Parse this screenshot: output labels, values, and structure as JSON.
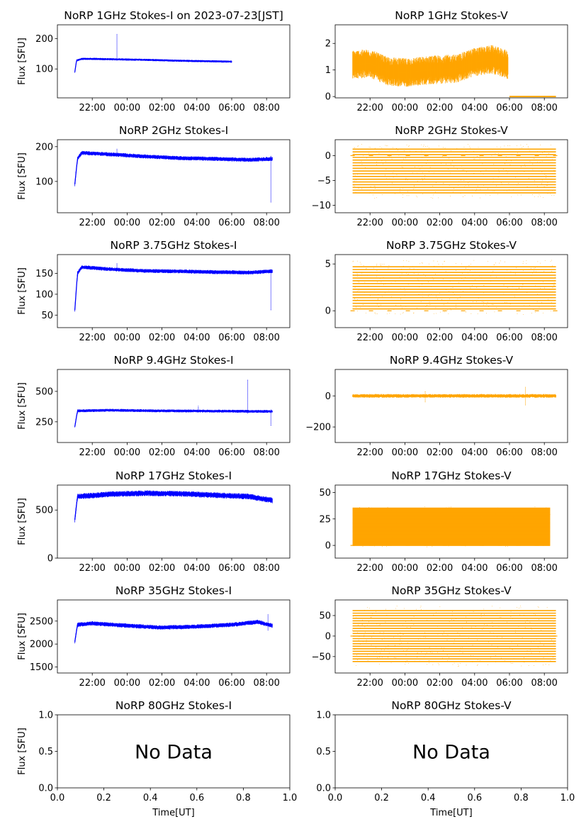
{
  "x_tick_labels": [
    "22:00",
    "00:00",
    "02:00",
    "04:00",
    "06:00",
    "08:00"
  ],
  "ylabel": "Flux [SFU]",
  "xlabel": "Time[UT]",
  "no_data_text": "No Data",
  "colors": {
    "stokes_i": "#0000ff",
    "stokes_v": "#ffa500"
  },
  "chart_data": [
    {
      "type": "scatter",
      "title": "NoRP 1GHz Stokes-I on 2023-07-23[JST]",
      "ylabel": "Flux [SFU]",
      "x_range": [
        "2023-07-22 20:00",
        "2023-07-23 09:20"
      ],
      "x_ticks": [
        "2023-07-22 22:00",
        "2023-07-23 00:00",
        "2023-07-23 02:00",
        "2023-07-23 04:00",
        "2023-07-23 06:00",
        "2023-07-23 08:00"
      ],
      "ylim": [
        5,
        245
      ],
      "yticks": [
        100,
        200
      ],
      "series": [
        {
          "color": "#0000ff",
          "start": "2023-07-22 21:00",
          "end": "2023-07-23 06:00",
          "profile": [
            [
              0,
              90
            ],
            [
              0.1,
              128
            ],
            [
              0.4,
              133
            ],
            [
              1,
              133
            ],
            [
              3,
              131
            ],
            [
              4,
              130
            ],
            [
              6,
              127
            ],
            [
              8,
              125
            ],
            [
              9,
              124
            ]
          ],
          "noise": 3,
          "spikes": [
            {
              "time": "2023-07-22 23:25",
              "min": 128,
              "max": 215
            }
          ]
        }
      ]
    },
    {
      "type": "scatter",
      "title": "NoRP 1GHz Stokes-V",
      "x_range": [
        "2023-07-22 20:00",
        "2023-07-23 09:20"
      ],
      "x_ticks": [
        "2023-07-22 22:00",
        "2023-07-23 00:00",
        "2023-07-23 02:00",
        "2023-07-23 04:00",
        "2023-07-23 06:00",
        "2023-07-23 08:00"
      ],
      "ylim": [
        -0.05,
        2.7
      ],
      "yticks": [
        0,
        1,
        2
      ],
      "series": [
        {
          "color": "#ffa500",
          "start": "2023-07-22 21:00",
          "end": "2023-07-23 05:55",
          "profile": [
            [
              0,
              1.2
            ],
            [
              1,
              1.25
            ],
            [
              2,
              0.95
            ],
            [
              3,
              0.9
            ],
            [
              4.5,
              1.0
            ],
            [
              6,
              1.05
            ],
            [
              7,
              1.3
            ],
            [
              8,
              1.4
            ],
            [
              8.9,
              1.2
            ]
          ],
          "noise": 0.45,
          "zero_segment": {
            "start": "2023-07-23 06:00",
            "end": "2023-07-23 08:40"
          }
        }
      ]
    },
    {
      "type": "scatter",
      "title": "NoRP 2GHz Stokes-I",
      "ylabel": "Flux [SFU]",
      "x_range": [
        "2023-07-22 20:00",
        "2023-07-23 09:20"
      ],
      "x_ticks": [
        "2023-07-22 22:00",
        "2023-07-23 00:00",
        "2023-07-23 02:00",
        "2023-07-23 04:00",
        "2023-07-23 06:00",
        "2023-07-23 08:00"
      ],
      "ylim": [
        10,
        220
      ],
      "yticks": [
        100,
        200
      ],
      "series": [
        {
          "color": "#0000ff",
          "start": "2023-07-22 21:00",
          "end": "2023-07-23 08:20",
          "profile": [
            [
              0,
              92
            ],
            [
              0.15,
              165
            ],
            [
              0.4,
              182
            ],
            [
              2,
              178
            ],
            [
              4,
              172
            ],
            [
              6,
              167
            ],
            [
              8,
              165
            ],
            [
              10,
              162
            ],
            [
              11.33,
              165
            ]
          ],
          "noise": 5,
          "spikes": [
            {
              "time": "2023-07-22 23:25",
              "min": 175,
              "max": 195
            },
            {
              "time": "2023-07-23 08:15",
              "min": 40,
              "max": 175
            }
          ]
        }
      ]
    },
    {
      "type": "scatter",
      "title": "NoRP 2GHz Stokes-V",
      "x_range": [
        "2023-07-22 20:00",
        "2023-07-23 09:20"
      ],
      "x_ticks": [
        "2023-07-22 22:00",
        "2023-07-23 00:00",
        "2023-07-23 02:00",
        "2023-07-23 04:00",
        "2023-07-23 06:00",
        "2023-07-23 08:00"
      ],
      "ylim": [
        -11.5,
        3.2
      ],
      "yticks": [
        0,
        -5,
        -10
      ],
      "series": [
        {
          "color": "#ffa500",
          "start": "2023-07-22 21:00",
          "end": "2023-07-23 08:40",
          "bands": {
            "from": -7.5,
            "to": 1.2,
            "step": 0.55
          }
        }
      ]
    },
    {
      "type": "scatter",
      "title": "NoRP 3.75GHz Stokes-I",
      "ylabel": "Flux [SFU]",
      "x_range": [
        "2023-07-22 20:00",
        "2023-07-23 09:20"
      ],
      "x_ticks": [
        "2023-07-22 22:00",
        "2023-07-23 00:00",
        "2023-07-23 02:00",
        "2023-07-23 04:00",
        "2023-07-23 06:00",
        "2023-07-23 08:00"
      ],
      "ylim": [
        20,
        195
      ],
      "yticks": [
        50,
        100,
        150
      ],
      "series": [
        {
          "color": "#0000ff",
          "start": "2023-07-22 21:00",
          "end": "2023-07-23 08:20",
          "profile": [
            [
              0,
              62
            ],
            [
              0.15,
              150
            ],
            [
              0.4,
              165
            ],
            [
              2,
              160
            ],
            [
              4,
              156
            ],
            [
              6,
              155
            ],
            [
              8,
              153
            ],
            [
              10,
              152
            ],
            [
              11.33,
              155
            ]
          ],
          "noise": 4,
          "spikes": [
            {
              "time": "2023-07-22 23:25",
              "min": 155,
              "max": 175
            },
            {
              "time": "2023-07-23 08:15",
              "min": 62,
              "max": 160
            }
          ]
        }
      ]
    },
    {
      "type": "scatter",
      "title": "NoRP 3.75GHz Stokes-V",
      "x_range": [
        "2023-07-22 20:00",
        "2023-07-23 09:20"
      ],
      "x_ticks": [
        "2023-07-22 22:00",
        "2023-07-23 00:00",
        "2023-07-23 02:00",
        "2023-07-23 04:00",
        "2023-07-23 06:00",
        "2023-07-23 08:00"
      ],
      "ylim": [
        -1.8,
        6.0
      ],
      "yticks": [
        0,
        5
      ],
      "series": [
        {
          "color": "#ffa500",
          "start": "2023-07-22 21:00",
          "end": "2023-07-23 08:40",
          "bands": {
            "from": 0.2,
            "to": 4.8,
            "step": 0.3
          }
        }
      ]
    },
    {
      "type": "scatter",
      "title": "NoRP 9.4GHz Stokes-I",
      "ylabel": "Flux [SFU]",
      "x_range": [
        "2023-07-22 20:00",
        "2023-07-23 09:20"
      ],
      "x_ticks": [
        "2023-07-22 22:00",
        "2023-07-23 00:00",
        "2023-07-23 02:00",
        "2023-07-23 04:00",
        "2023-07-23 06:00",
        "2023-07-23 08:00"
      ],
      "ylim": [
        80,
        680
      ],
      "yticks": [
        250,
        500
      ],
      "series": [
        {
          "color": "#0000ff",
          "start": "2023-07-22 21:00",
          "end": "2023-07-23 08:20",
          "profile": [
            [
              0,
              210
            ],
            [
              0.15,
              340
            ],
            [
              2,
              345
            ],
            [
              5,
              340
            ],
            [
              8,
              338
            ],
            [
              11.33,
              335
            ]
          ],
          "noise": 10,
          "spikes": [
            {
              "time": "2023-07-23 06:55",
              "min": 320,
              "max": 600
            },
            {
              "time": "2023-07-23 04:05",
              "min": 330,
              "max": 380
            },
            {
              "time": "2023-07-23 08:15",
              "min": 220,
              "max": 350
            }
          ]
        }
      ]
    },
    {
      "type": "scatter",
      "title": "NoRP 9.4GHz Stokes-V",
      "x_range": [
        "2023-07-22 20:00",
        "2023-07-23 09:20"
      ],
      "x_ticks": [
        "2023-07-22 22:00",
        "2023-07-23 00:00",
        "2023-07-23 02:00",
        "2023-07-23 04:00",
        "2023-07-23 06:00",
        "2023-07-23 08:00"
      ],
      "ylim": [
        -300,
        170
      ],
      "yticks": [
        0,
        -200
      ],
      "series": [
        {
          "color": "#ffa500",
          "start": "2023-07-22 21:00",
          "end": "2023-07-23 08:40",
          "profile": [
            [
              0,
              0
            ],
            [
              11.67,
              0
            ]
          ],
          "noise": 10,
          "spikes": [
            {
              "time": "2023-07-23 06:55",
              "min": -60,
              "max": 60
            },
            {
              "time": "2023-07-23 01:10",
              "min": -40,
              "max": 30
            }
          ]
        }
      ]
    },
    {
      "type": "scatter",
      "title": "NoRP 17GHz Stokes-I",
      "ylabel": "Flux [SFU]",
      "x_range": [
        "2023-07-22 20:00",
        "2023-07-23 09:20"
      ],
      "x_ticks": [
        "2023-07-22 22:00",
        "2023-07-23 00:00",
        "2023-07-23 02:00",
        "2023-07-23 04:00",
        "2023-07-23 06:00",
        "2023-07-23 08:00"
      ],
      "ylim": [
        0,
        760
      ],
      "yticks": [
        0,
        500
      ],
      "series": [
        {
          "color": "#0000ff",
          "start": "2023-07-22 21:00",
          "end": "2023-07-23 08:20",
          "profile": [
            [
              0,
              400
            ],
            [
              0.15,
              640
            ],
            [
              2,
              665
            ],
            [
              4,
              675
            ],
            [
              6,
              670
            ],
            [
              8,
              655
            ],
            [
              10,
              640
            ],
            [
              11.33,
              600
            ]
          ],
          "noise": 25
        }
      ]
    },
    {
      "type": "scatter",
      "title": "NoRP 17GHz Stokes-V",
      "x_range": [
        "2023-07-22 20:00",
        "2023-07-23 09:20"
      ],
      "x_ticks": [
        "2023-07-22 22:00",
        "2023-07-23 00:00",
        "2023-07-23 02:00",
        "2023-07-23 04:00",
        "2023-07-23 06:00",
        "2023-07-23 08:00"
      ],
      "ylim": [
        -12,
        57
      ],
      "yticks": [
        0,
        25,
        50
      ],
      "series": [
        {
          "color": "#ffa500",
          "start": "2023-07-22 21:00",
          "end": "2023-07-23 08:20",
          "bands": {
            "from": 0,
            "to": 35,
            "step": 0.8
          }
        }
      ]
    },
    {
      "type": "scatter",
      "title": "NoRP 35GHz Stokes-I",
      "ylabel": "Flux [SFU]",
      "x_range": [
        "2023-07-22 20:00",
        "2023-07-23 09:20"
      ],
      "x_ticks": [
        "2023-07-22 22:00",
        "2023-07-23 00:00",
        "2023-07-23 02:00",
        "2023-07-23 04:00",
        "2023-07-23 06:00",
        "2023-07-23 08:00"
      ],
      "ylim": [
        1370,
        2960
      ],
      "yticks": [
        1500,
        2000,
        2500
      ],
      "series": [
        {
          "color": "#0000ff",
          "start": "2023-07-22 21:00",
          "end": "2023-07-23 08:20",
          "profile": [
            [
              0,
              2050
            ],
            [
              0.15,
              2420
            ],
            [
              1,
              2450
            ],
            [
              3,
              2400
            ],
            [
              5,
              2360
            ],
            [
              7,
              2380
            ],
            [
              9,
              2420
            ],
            [
              10.5,
              2480
            ],
            [
              11.33,
              2400
            ]
          ],
          "noise": 40,
          "spikes": [
            {
              "time": "2023-07-23 08:05",
              "min": 2300,
              "max": 2650
            }
          ]
        }
      ]
    },
    {
      "type": "scatter",
      "title": "NoRP 35GHz Stokes-V",
      "x_range": [
        "2023-07-22 20:00",
        "2023-07-23 09:20"
      ],
      "x_ticks": [
        "2023-07-22 22:00",
        "2023-07-23 00:00",
        "2023-07-23 02:00",
        "2023-07-23 04:00",
        "2023-07-23 06:00",
        "2023-07-23 08:00"
      ],
      "ylim": [
        -90,
        88
      ],
      "yticks": [
        -50,
        0,
        50
      ],
      "series": [
        {
          "color": "#ffa500",
          "start": "2023-07-22 21:00",
          "end": "2023-07-23 08:40",
          "bands": {
            "from": -62,
            "to": 62,
            "step": 6.2
          }
        }
      ]
    },
    {
      "type": "scatter",
      "title": "NoRP 80GHz Stokes-I",
      "ylabel": "Flux [SFU]",
      "xlabel": "Time[UT]",
      "no_data": true,
      "xlim": [
        0,
        1
      ],
      "ylim": [
        0,
        1
      ],
      "x_tick_values": [
        0.0,
        0.2,
        0.4,
        0.6,
        0.8,
        1.0
      ],
      "yticks": [
        0.0,
        0.5,
        1.0
      ],
      "series": []
    },
    {
      "type": "scatter",
      "title": "NoRP 80GHz Stokes-V",
      "xlabel": "Time[UT]",
      "no_data": true,
      "xlim": [
        0,
        1
      ],
      "ylim": [
        0,
        1
      ],
      "x_tick_values": [
        0.0,
        0.2,
        0.4,
        0.6,
        0.8,
        1.0
      ],
      "yticks": [
        0.0,
        0.5,
        1.0
      ],
      "series": []
    }
  ]
}
